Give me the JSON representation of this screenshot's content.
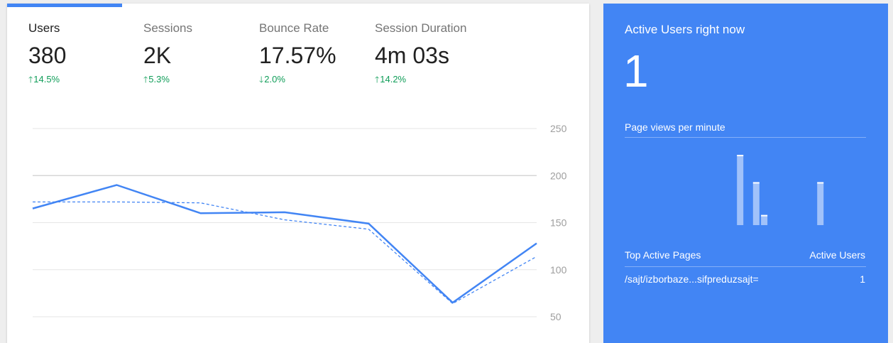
{
  "metrics": [
    {
      "label": "Users",
      "value": "380",
      "change": "14.5%",
      "direction": "up"
    },
    {
      "label": "Sessions",
      "value": "2K",
      "change": "5.3%",
      "direction": "up"
    },
    {
      "label": "Bounce Rate",
      "value": "17.57%",
      "change": "2.0%",
      "direction": "down"
    },
    {
      "label": "Session Duration",
      "value": "4m 03s",
      "change": "14.2%",
      "direction": "up"
    }
  ],
  "colors": {
    "accent": "#4285f4",
    "positive": "#0f9d58",
    "panel": "#4285f4"
  },
  "chart_data": {
    "type": "line",
    "ylim": [
      50,
      250
    ],
    "yticks": [
      50,
      100,
      150,
      200,
      250
    ],
    "series": [
      {
        "style": "solid",
        "values": [
          165,
          190,
          160,
          161,
          149,
          65,
          128
        ]
      },
      {
        "style": "dashed",
        "values": [
          172,
          172,
          171,
          153,
          143,
          64,
          114
        ]
      }
    ]
  },
  "realtime": {
    "title": "Active Users right now",
    "count": "1",
    "pageviews_label": "Page views per minute",
    "pageviews": [
      0,
      0,
      0,
      0,
      0,
      0,
      0,
      0,
      0,
      0,
      0,
      0,
      0,
      0,
      13,
      0,
      8,
      2,
      0,
      0,
      0,
      0,
      0,
      0,
      8,
      0,
      0,
      0,
      0,
      0
    ],
    "top_pages_label": "Top Active Pages",
    "active_users_label": "Active Users",
    "pages": [
      {
        "url": "/sajt/izborbaze...sifpreduzsajt=",
        "users": "1"
      }
    ]
  }
}
